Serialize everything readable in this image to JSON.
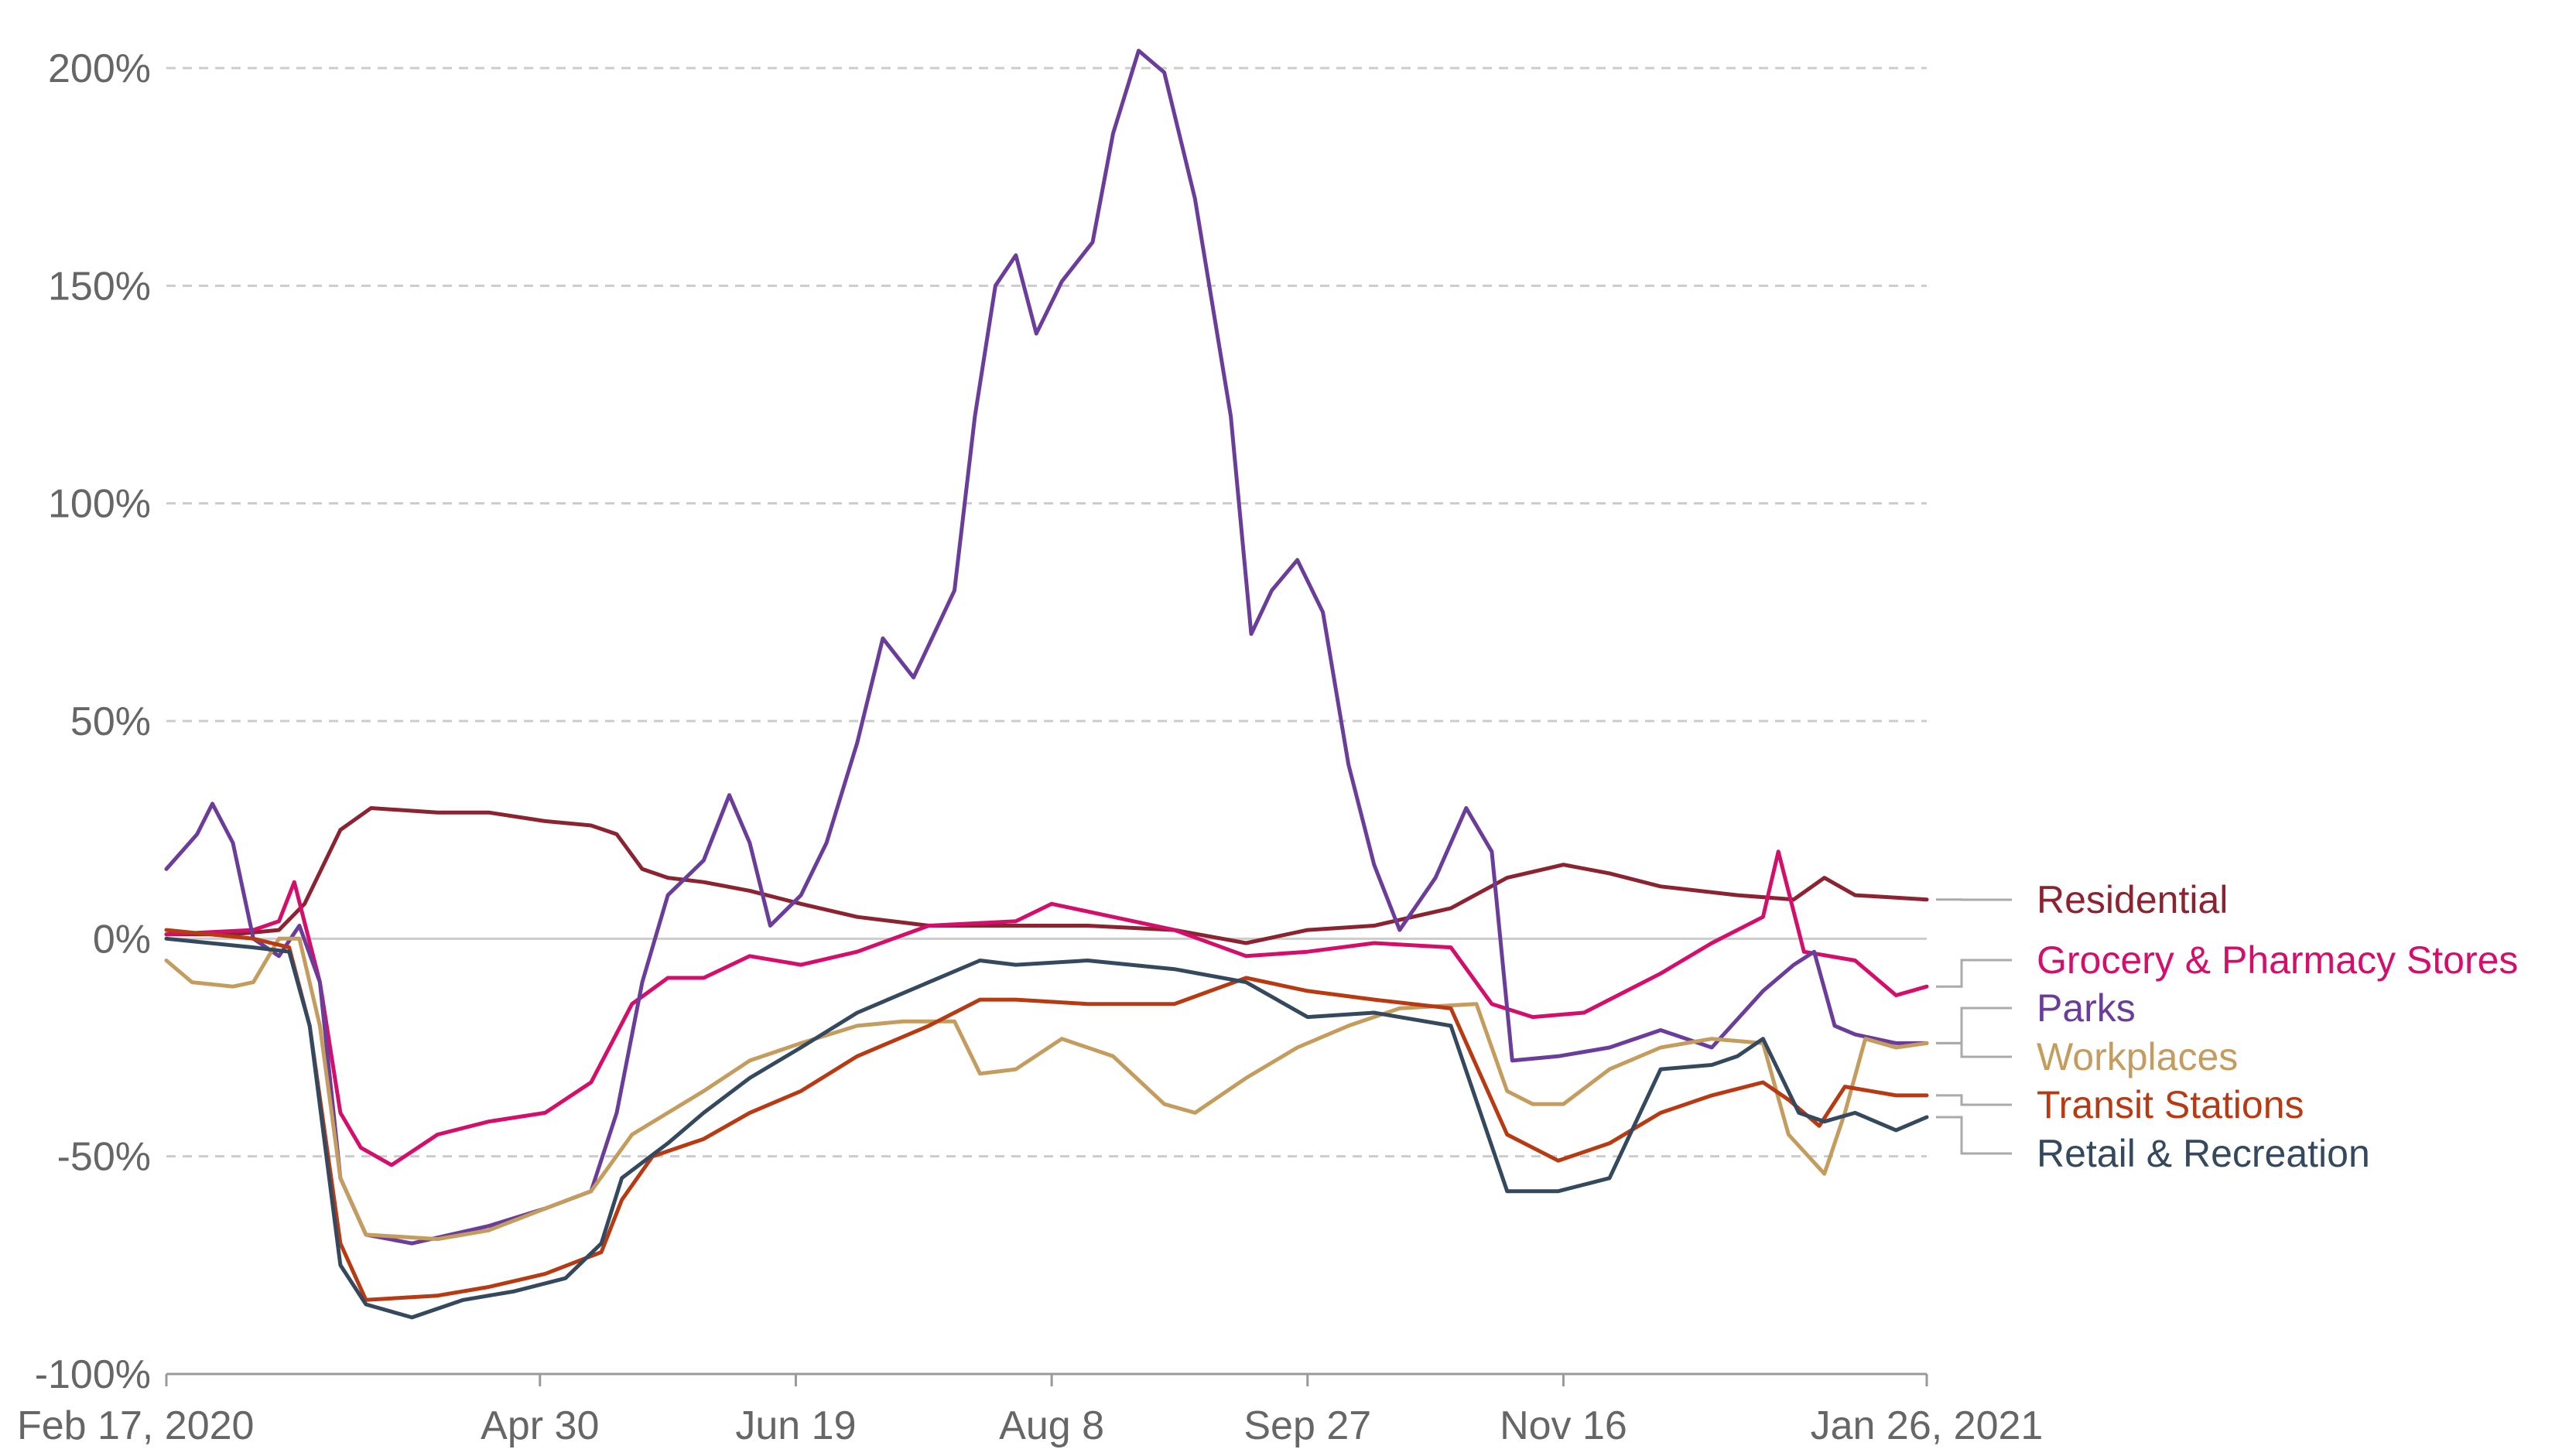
{
  "chart_data": {
    "type": "line",
    "title": "",
    "xlabel": "",
    "ylabel": "",
    "x_start": "Feb 17, 2020",
    "x_end": "Jan 26, 2021",
    "x_ticks": [
      "Feb 17, 2020",
      "Apr 30",
      "Jun 19",
      "Aug 8",
      "Sep 27",
      "Nov 16",
      "Jan 26, 2021"
    ],
    "ylim": [
      -100,
      200
    ],
    "y_ticks": [
      "-100%",
      "-50%",
      "0%",
      "50%",
      "100%",
      "150%",
      "200%"
    ],
    "grid": true,
    "legend": "right (end-of-line labels)",
    "series": [
      {
        "name": "Residential",
        "color": "#8b2331",
        "points": [
          [
            "2020-02-17",
            1
          ],
          [
            "2020-03-01",
            1
          ],
          [
            "2020-03-10",
            2
          ],
          [
            "2020-03-15",
            8
          ],
          [
            "2020-03-22",
            25
          ],
          [
            "2020-03-28",
            30
          ],
          [
            "2020-04-10",
            29
          ],
          [
            "2020-04-20",
            29
          ],
          [
            "2020-05-01",
            27
          ],
          [
            "2020-05-10",
            26
          ],
          [
            "2020-05-15",
            24
          ],
          [
            "2020-05-20",
            16
          ],
          [
            "2020-05-25",
            14
          ],
          [
            "2020-06-01",
            13
          ],
          [
            "2020-06-10",
            11
          ],
          [
            "2020-06-20",
            8
          ],
          [
            "2020-07-01",
            5
          ],
          [
            "2020-07-15",
            3
          ],
          [
            "2020-08-01",
            3
          ],
          [
            "2020-08-15",
            3
          ],
          [
            "2020-09-01",
            2
          ],
          [
            "2020-09-15",
            -1
          ],
          [
            "2020-09-27",
            2
          ],
          [
            "2020-10-10",
            3
          ],
          [
            "2020-10-25",
            7
          ],
          [
            "2020-11-05",
            14
          ],
          [
            "2020-11-16",
            17
          ],
          [
            "2020-11-25",
            15
          ],
          [
            "2020-12-05",
            12
          ],
          [
            "2020-12-20",
            10
          ],
          [
            "2020-12-31",
            9
          ],
          [
            "2021-01-06",
            14
          ],
          [
            "2021-01-12",
            10
          ],
          [
            "2021-01-26",
            9
          ]
        ]
      },
      {
        "name": "Grocery & Pharmacy Stores",
        "color": "#d40e6b",
        "points": [
          [
            "2020-02-17",
            1
          ],
          [
            "2020-03-05",
            2
          ],
          [
            "2020-03-10",
            4
          ],
          [
            "2020-03-13",
            13
          ],
          [
            "2020-03-18",
            -10
          ],
          [
            "2020-03-22",
            -40
          ],
          [
            "2020-03-26",
            -48
          ],
          [
            "2020-04-01",
            -52
          ],
          [
            "2020-04-10",
            -45
          ],
          [
            "2020-04-20",
            -42
          ],
          [
            "2020-05-01",
            -40
          ],
          [
            "2020-05-10",
            -33
          ],
          [
            "2020-05-18",
            -15
          ],
          [
            "2020-05-25",
            -9
          ],
          [
            "2020-06-01",
            -9
          ],
          [
            "2020-06-10",
            -4
          ],
          [
            "2020-06-20",
            -6
          ],
          [
            "2020-07-01",
            -3
          ],
          [
            "2020-07-15",
            3
          ],
          [
            "2020-08-01",
            4
          ],
          [
            "2020-08-08",
            8
          ],
          [
            "2020-08-20",
            5
          ],
          [
            "2020-09-01",
            2
          ],
          [
            "2020-09-15",
            -4
          ],
          [
            "2020-09-27",
            -3
          ],
          [
            "2020-10-10",
            -1
          ],
          [
            "2020-10-25",
            -2
          ],
          [
            "2020-11-02",
            -15
          ],
          [
            "2020-11-10",
            -18
          ],
          [
            "2020-11-20",
            -17
          ],
          [
            "2020-12-05",
            -8
          ],
          [
            "2020-12-15",
            -1
          ],
          [
            "2020-12-25",
            5
          ],
          [
            "2020-12-28",
            20
          ],
          [
            "2021-01-02",
            -3
          ],
          [
            "2021-01-12",
            -5
          ],
          [
            "2021-01-20",
            -13
          ],
          [
            "2021-01-26",
            -11
          ]
        ]
      },
      {
        "name": "Parks",
        "color": "#6b3d9a",
        "points": [
          [
            "2020-02-17",
            16
          ],
          [
            "2020-02-23",
            24
          ],
          [
            "2020-02-26",
            31
          ],
          [
            "2020-03-01",
            22
          ],
          [
            "2020-03-05",
            0
          ],
          [
            "2020-03-10",
            -4
          ],
          [
            "2020-03-14",
            3
          ],
          [
            "2020-03-18",
            -10
          ],
          [
            "2020-03-22",
            -55
          ],
          [
            "2020-03-27",
            -68
          ],
          [
            "2020-04-05",
            -70
          ],
          [
            "2020-04-20",
            -66
          ],
          [
            "2020-05-01",
            -62
          ],
          [
            "2020-05-10",
            -58
          ],
          [
            "2020-05-15",
            -40
          ],
          [
            "2020-05-20",
            -10
          ],
          [
            "2020-05-25",
            10
          ],
          [
            "2020-06-01",
            18
          ],
          [
            "2020-06-06",
            33
          ],
          [
            "2020-06-10",
            22
          ],
          [
            "2020-06-14",
            3
          ],
          [
            "2020-06-20",
            10
          ],
          [
            "2020-06-25",
            22
          ],
          [
            "2020-07-01",
            45
          ],
          [
            "2020-07-06",
            69
          ],
          [
            "2020-07-12",
            60
          ],
          [
            "2020-07-20",
            80
          ],
          [
            "2020-07-24",
            120
          ],
          [
            "2020-07-28",
            150
          ],
          [
            "2020-08-01",
            157
          ],
          [
            "2020-08-05",
            139
          ],
          [
            "2020-08-10",
            151
          ],
          [
            "2020-08-16",
            160
          ],
          [
            "2020-08-20",
            185
          ],
          [
            "2020-08-25",
            204
          ],
          [
            "2020-08-30",
            199
          ],
          [
            "2020-09-05",
            170
          ],
          [
            "2020-09-12",
            120
          ],
          [
            "2020-09-16",
            70
          ],
          [
            "2020-09-20",
            80
          ],
          [
            "2020-09-25",
            87
          ],
          [
            "2020-09-30",
            75
          ],
          [
            "2020-10-05",
            40
          ],
          [
            "2020-10-10",
            17
          ],
          [
            "2020-10-15",
            2
          ],
          [
            "2020-10-22",
            14
          ],
          [
            "2020-10-28",
            30
          ],
          [
            "2020-11-02",
            20
          ],
          [
            "2020-11-06",
            -28
          ],
          [
            "2020-11-15",
            -27
          ],
          [
            "2020-11-25",
            -25
          ],
          [
            "2020-12-05",
            -21
          ],
          [
            "2020-12-15",
            -25
          ],
          [
            "2020-12-25",
            -12
          ],
          [
            "2020-12-31",
            -6
          ],
          [
            "2021-01-04",
            -3
          ],
          [
            "2021-01-08",
            -20
          ],
          [
            "2021-01-12",
            -22
          ],
          [
            "2021-01-20",
            -24
          ],
          [
            "2021-01-26",
            -24
          ]
        ]
      },
      {
        "name": "Workplaces",
        "color": "#c49c5e",
        "points": [
          [
            "2020-02-17",
            -5
          ],
          [
            "2020-02-22",
            -10
          ],
          [
            "2020-03-01",
            -11
          ],
          [
            "2020-03-05",
            -10
          ],
          [
            "2020-03-10",
            0
          ],
          [
            "2020-03-14",
            0
          ],
          [
            "2020-03-18",
            -20
          ],
          [
            "2020-03-22",
            -55
          ],
          [
            "2020-03-27",
            -68
          ],
          [
            "2020-04-10",
            -69
          ],
          [
            "2020-04-20",
            -67
          ],
          [
            "2020-05-01",
            -62
          ],
          [
            "2020-05-10",
            -58
          ],
          [
            "2020-05-18",
            -45
          ],
          [
            "2020-05-25",
            -40
          ],
          [
            "2020-06-01",
            -35
          ],
          [
            "2020-06-10",
            -28
          ],
          [
            "2020-06-20",
            -24
          ],
          [
            "2020-07-01",
            -20
          ],
          [
            "2020-07-10",
            -19
          ],
          [
            "2020-07-20",
            -19
          ],
          [
            "2020-07-25",
            -31
          ],
          [
            "2020-08-01",
            -30
          ],
          [
            "2020-08-10",
            -23
          ],
          [
            "2020-08-20",
            -27
          ],
          [
            "2020-08-30",
            -38
          ],
          [
            "2020-09-05",
            -40
          ],
          [
            "2020-09-15",
            -32
          ],
          [
            "2020-09-25",
            -25
          ],
          [
            "2020-10-05",
            -20
          ],
          [
            "2020-10-15",
            -16
          ],
          [
            "2020-10-30",
            -15
          ],
          [
            "2020-11-05",
            -35
          ],
          [
            "2020-11-10",
            -38
          ],
          [
            "2020-11-16",
            -38
          ],
          [
            "2020-11-25",
            -30
          ],
          [
            "2020-12-05",
            -25
          ],
          [
            "2020-12-15",
            -23
          ],
          [
            "2020-12-25",
            -24
          ],
          [
            "2020-12-30",
            -45
          ],
          [
            "2021-01-06",
            -54
          ],
          [
            "2021-01-10",
            -40
          ],
          [
            "2021-01-14",
            -23
          ],
          [
            "2021-01-20",
            -25
          ],
          [
            "2021-01-26",
            -24
          ]
        ]
      },
      {
        "name": "Transit Stations",
        "color": "#b83a13",
        "points": [
          [
            "2020-02-17",
            2
          ],
          [
            "2020-03-05",
            0
          ],
          [
            "2020-03-12",
            -2
          ],
          [
            "2020-03-16",
            -20
          ],
          [
            "2020-03-22",
            -70
          ],
          [
            "2020-03-27",
            -83
          ],
          [
            "2020-04-10",
            -82
          ],
          [
            "2020-04-20",
            -80
          ],
          [
            "2020-05-01",
            -77
          ],
          [
            "2020-05-12",
            -72
          ],
          [
            "2020-05-16",
            -60
          ],
          [
            "2020-05-22",
            -50
          ],
          [
            "2020-06-01",
            -46
          ],
          [
            "2020-06-10",
            -40
          ],
          [
            "2020-06-20",
            -35
          ],
          [
            "2020-07-01",
            -27
          ],
          [
            "2020-07-15",
            -20
          ],
          [
            "2020-07-25",
            -14
          ],
          [
            "2020-08-01",
            -14
          ],
          [
            "2020-08-15",
            -15
          ],
          [
            "2020-09-01",
            -15
          ],
          [
            "2020-09-15",
            -9
          ],
          [
            "2020-09-27",
            -12
          ],
          [
            "2020-10-10",
            -14
          ],
          [
            "2020-10-25",
            -16
          ],
          [
            "2020-11-05",
            -45
          ],
          [
            "2020-11-15",
            -51
          ],
          [
            "2020-11-25",
            -47
          ],
          [
            "2020-12-05",
            -40
          ],
          [
            "2020-12-15",
            -36
          ],
          [
            "2020-12-25",
            -33
          ],
          [
            "2020-12-30",
            -37
          ],
          [
            "2021-01-05",
            -43
          ],
          [
            "2021-01-10",
            -34
          ],
          [
            "2021-01-20",
            -36
          ],
          [
            "2021-01-26",
            -36
          ]
        ]
      },
      {
        "name": "Retail & Recreation",
        "color": "#34495e",
        "points": [
          [
            "2020-02-17",
            0
          ],
          [
            "2020-03-05",
            -2
          ],
          [
            "2020-03-12",
            -3
          ],
          [
            "2020-03-16",
            -20
          ],
          [
            "2020-03-22",
            -75
          ],
          [
            "2020-03-27",
            -84
          ],
          [
            "2020-04-05",
            -87
          ],
          [
            "2020-04-15",
            -83
          ],
          [
            "2020-04-25",
            -81
          ],
          [
            "2020-05-05",
            -78
          ],
          [
            "2020-05-12",
            -70
          ],
          [
            "2020-05-16",
            -55
          ],
          [
            "2020-05-25",
            -47
          ],
          [
            "2020-06-01",
            -40
          ],
          [
            "2020-06-10",
            -32
          ],
          [
            "2020-06-20",
            -25
          ],
          [
            "2020-07-01",
            -17
          ],
          [
            "2020-07-15",
            -10
          ],
          [
            "2020-07-25",
            -5
          ],
          [
            "2020-08-01",
            -6
          ],
          [
            "2020-08-15",
            -5
          ],
          [
            "2020-09-01",
            -7
          ],
          [
            "2020-09-15",
            -10
          ],
          [
            "2020-09-27",
            -18
          ],
          [
            "2020-10-10",
            -17
          ],
          [
            "2020-10-25",
            -20
          ],
          [
            "2020-11-05",
            -58
          ],
          [
            "2020-11-15",
            -58
          ],
          [
            "2020-11-25",
            -55
          ],
          [
            "2020-12-05",
            -30
          ],
          [
            "2020-12-15",
            -29
          ],
          [
            "2020-12-20",
            -27
          ],
          [
            "2020-12-25",
            -23
          ],
          [
            "2021-01-01",
            -40
          ],
          [
            "2021-01-06",
            -42
          ],
          [
            "2021-01-12",
            -40
          ],
          [
            "2021-01-20",
            -44
          ],
          [
            "2021-01-26",
            -41
          ]
        ]
      }
    ]
  }
}
